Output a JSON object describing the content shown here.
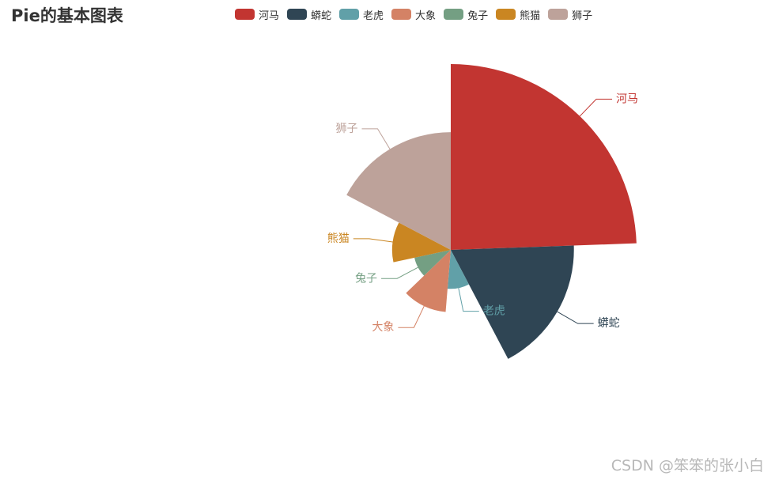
{
  "chart_data": {
    "type": "pie",
    "variant": "rose-radius",
    "title": "Pie的基本图表",
    "legend_position": "top",
    "categories": [
      "河马",
      "蟒蛇",
      "老虎",
      "大象",
      "兔子",
      "熊猫",
      "狮子"
    ],
    "values": [
      130,
      95,
      48,
      61,
      47,
      59,
      92
    ],
    "colors": [
      "#c23531",
      "#2f4554",
      "#61a0a8",
      "#d48265",
      "#749f83",
      "#ca8622",
      "#bda29a"
    ]
  },
  "watermark": "CSDN @笨笨的张小白"
}
